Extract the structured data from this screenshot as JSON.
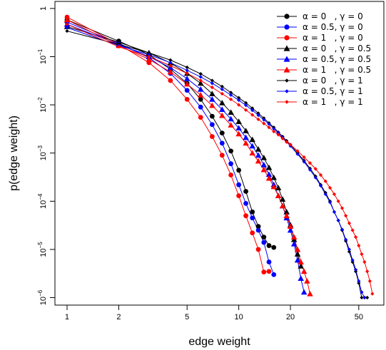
{
  "chart_data": {
    "type": "line",
    "xlabel": "edge weight",
    "ylabel": "p(edge weight)",
    "x_scale": "log",
    "y_scale": "log",
    "xlim": [
      0.85,
      70
    ],
    "ylim": [
      7e-07,
      1.4
    ],
    "x_ticks": [
      {
        "value": 1,
        "label": "1"
      },
      {
        "value": 2,
        "label": "2"
      },
      {
        "value": 5,
        "label": "5"
      },
      {
        "value": 10,
        "label": "10"
      },
      {
        "value": 20,
        "label": "20"
      },
      {
        "value": 50,
        "label": "50"
      }
    ],
    "y_ticks": [
      {
        "value": 1,
        "base": "1",
        "exp": ""
      },
      {
        "value": 0.1,
        "base": "10",
        "exp": "−1"
      },
      {
        "value": 0.01,
        "base": "10",
        "exp": "−2"
      },
      {
        "value": 0.001,
        "base": "10",
        "exp": "−3"
      },
      {
        "value": 0.0001,
        "base": "10",
        "exp": "−4"
      },
      {
        "value": 1e-05,
        "base": "10",
        "exp": "−5"
      },
      {
        "value": 1e-06,
        "base": "10",
        "exp": "−6"
      }
    ],
    "grid": false,
    "legend_position": "top-right",
    "series": [
      {
        "name": "α = 0   , γ = 0",
        "color": "#000000",
        "marker": "circle",
        "x": [
          1,
          2,
          3,
          4,
          5,
          6,
          7,
          8,
          9,
          10,
          11,
          12,
          13,
          14,
          15,
          16
        ],
        "y": [
          0.58,
          0.21,
          0.11,
          0.055,
          0.028,
          0.013,
          0.0058,
          0.0026,
          0.0011,
          0.00044,
          0.00016,
          6e-05,
          3e-05,
          1.8e-05,
          1.2e-05,
          1.1e-05
        ]
      },
      {
        "name": "α = 0.5, γ = 0",
        "color": "#0000ff",
        "marker": "circle",
        "x": [
          1,
          2,
          3,
          4,
          5,
          6,
          7,
          8,
          9,
          10,
          11,
          12,
          13,
          14,
          15,
          16
        ],
        "y": [
          0.52,
          0.19,
          0.095,
          0.045,
          0.02,
          0.009,
          0.0039,
          0.0016,
          0.0006,
          0.00022,
          9e-05,
          4.5e-05,
          2.5e-05,
          1.4e-05,
          5.5e-06,
          3e-06
        ]
      },
      {
        "name": "α = 1   , γ = 0",
        "color": "#ff0000",
        "marker": "circle",
        "x": [
          1,
          2,
          3,
          4,
          5,
          6,
          7,
          8,
          9,
          10,
          11,
          12,
          13,
          14,
          15
        ],
        "y": [
          0.66,
          0.18,
          0.075,
          0.032,
          0.013,
          0.0055,
          0.0022,
          0.0009,
          0.00035,
          0.00013,
          5e-05,
          2.2e-05,
          1e-05,
          3.4e-06,
          3.5e-06
        ]
      },
      {
        "name": "α = 0   , γ = 0.5",
        "color": "#000000",
        "marker": "triangle",
        "x": [
          1,
          2,
          3,
          4,
          5,
          6,
          7,
          8,
          9,
          10,
          11,
          12,
          13,
          14,
          15,
          16,
          17,
          18,
          19,
          20,
          21,
          22,
          23
        ],
        "y": [
          0.42,
          0.2,
          0.12,
          0.074,
          0.045,
          0.028,
          0.017,
          0.011,
          0.007,
          0.0045,
          0.0029,
          0.0019,
          0.0012,
          0.0008,
          0.0005,
          0.00031,
          0.00019,
          0.00011,
          6e-05,
          3.2e-05,
          1.6e-05,
          8e-06,
          4.5e-06
        ]
      },
      {
        "name": "α = 0.5, γ = 0.5",
        "color": "#0000ff",
        "marker": "triangle",
        "x": [
          1,
          2,
          3,
          4,
          5,
          6,
          7,
          8,
          9,
          10,
          11,
          12,
          13,
          14,
          15,
          16,
          17,
          18,
          19,
          20,
          21,
          22,
          23,
          24
        ],
        "y": [
          0.47,
          0.18,
          0.1,
          0.059,
          0.035,
          0.021,
          0.013,
          0.008,
          0.0051,
          0.0033,
          0.0021,
          0.0014,
          0.0009,
          0.00057,
          0.00036,
          0.00022,
          0.00013,
          8e-05,
          4.5e-05,
          2.5e-05,
          1.3e-05,
          6e-06,
          2.5e-06,
          1.3e-06
        ]
      },
      {
        "name": "α = 1   , γ = 0.5",
        "color": "#ff0000",
        "marker": "triangle",
        "x": [
          1,
          2,
          3,
          4,
          5,
          6,
          7,
          8,
          9,
          10,
          11,
          12,
          13,
          14,
          15,
          16,
          17,
          18,
          19,
          20,
          21,
          22,
          23,
          24,
          25,
          26
        ],
        "y": [
          0.58,
          0.17,
          0.088,
          0.048,
          0.027,
          0.016,
          0.0097,
          0.006,
          0.0038,
          0.0025,
          0.0016,
          0.001,
          0.00068,
          0.00045,
          0.0003,
          0.0002,
          0.00013,
          8e-05,
          5e-05,
          3e-05,
          1.8e-05,
          1e-05,
          5.5e-06,
          3.5e-06,
          2.2e-06,
          1.2e-06
        ]
      },
      {
        "name": "α = 0   , γ = 1",
        "color": "#000000",
        "marker": "diamond",
        "x": [
          1,
          2,
          3,
          4,
          5,
          6,
          7,
          8,
          9,
          10,
          11,
          12,
          13,
          14,
          15,
          16,
          17,
          18,
          19,
          20,
          22,
          24,
          26,
          28,
          30,
          32,
          34,
          36,
          38,
          40,
          42,
          44,
          46,
          48,
          50,
          52,
          54,
          56
        ],
        "y": [
          0.34,
          0.18,
          0.12,
          0.085,
          0.06,
          0.044,
          0.032,
          0.024,
          0.018,
          0.014,
          0.011,
          0.0085,
          0.0067,
          0.0053,
          0.0042,
          0.0034,
          0.0027,
          0.0022,
          0.0018,
          0.0015,
          0.001,
          0.0007,
          0.00048,
          0.00033,
          0.00022,
          0.00015,
          0.0001,
          6e-05,
          4e-05,
          2.5e-05,
          1.5e-05,
          9e-06,
          5.5e-06,
          3.5e-06,
          2e-06,
          1e-06,
          1e-06,
          1e-06
        ]
      },
      {
        "name": "α = 0.5, γ = 1",
        "color": "#0000ff",
        "marker": "diamond",
        "x": [
          1,
          2,
          3,
          4,
          5,
          6,
          7,
          8,
          9,
          10,
          11,
          12,
          13,
          14,
          15,
          16,
          17,
          18,
          19,
          20,
          22,
          24,
          26,
          28,
          30,
          32,
          34,
          36,
          38,
          40,
          42,
          44,
          46,
          48,
          50,
          52,
          54
        ],
        "y": [
          0.4,
          0.17,
          0.11,
          0.075,
          0.052,
          0.038,
          0.028,
          0.021,
          0.016,
          0.0125,
          0.0098,
          0.0077,
          0.0061,
          0.0049,
          0.004,
          0.0032,
          0.0026,
          0.0021,
          0.0017,
          0.0014,
          0.00095,
          0.00066,
          0.00045,
          0.00031,
          0.00021,
          0.00014,
          9.5e-05,
          6e-05,
          4e-05,
          2.6e-05,
          1.6e-05,
          1e-05,
          6e-06,
          3.8e-06,
          2.2e-06,
          1.3e-06,
          1e-06
        ]
      },
      {
        "name": "α = 1   , γ = 1",
        "color": "#ff0000",
        "marker": "diamond",
        "x": [
          1,
          2,
          3,
          4,
          5,
          6,
          7,
          8,
          9,
          10,
          11,
          12,
          13,
          14,
          15,
          16,
          17,
          18,
          19,
          20,
          22,
          24,
          26,
          28,
          30,
          32,
          34,
          36,
          38,
          40,
          42,
          44,
          46,
          48,
          50,
          52,
          54,
          56,
          58,
          60
        ],
        "y": [
          0.47,
          0.16,
          0.1,
          0.065,
          0.045,
          0.032,
          0.023,
          0.017,
          0.013,
          0.01,
          0.0078,
          0.0062,
          0.005,
          0.0041,
          0.0034,
          0.0028,
          0.0024,
          0.002,
          0.0017,
          0.0015,
          0.0011,
          0.00082,
          0.00062,
          0.00047,
          0.00035,
          0.00026,
          0.00019,
          0.00014,
          0.0001,
          7.2e-05,
          5e-05,
          3.5e-05,
          2.5e-05,
          1.8e-05,
          1.2e-05,
          8e-06,
          5.5e-06,
          3.5e-06,
          2.2e-06,
          1.2e-06
        ]
      }
    ]
  }
}
